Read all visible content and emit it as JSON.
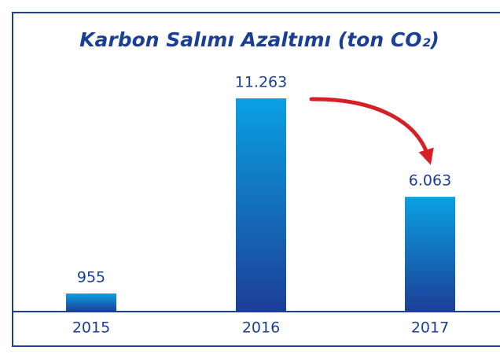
{
  "chart_data": {
    "type": "bar",
    "title": "Karbon Salımı Azaltımı (ton CO₂)",
    "categories": [
      "2015",
      "2016",
      "2017"
    ],
    "values": [
      955,
      11263,
      6063
    ],
    "value_labels": [
      "955",
      "11.263",
      "6.063"
    ],
    "color": "#1c3f97"
  }
}
